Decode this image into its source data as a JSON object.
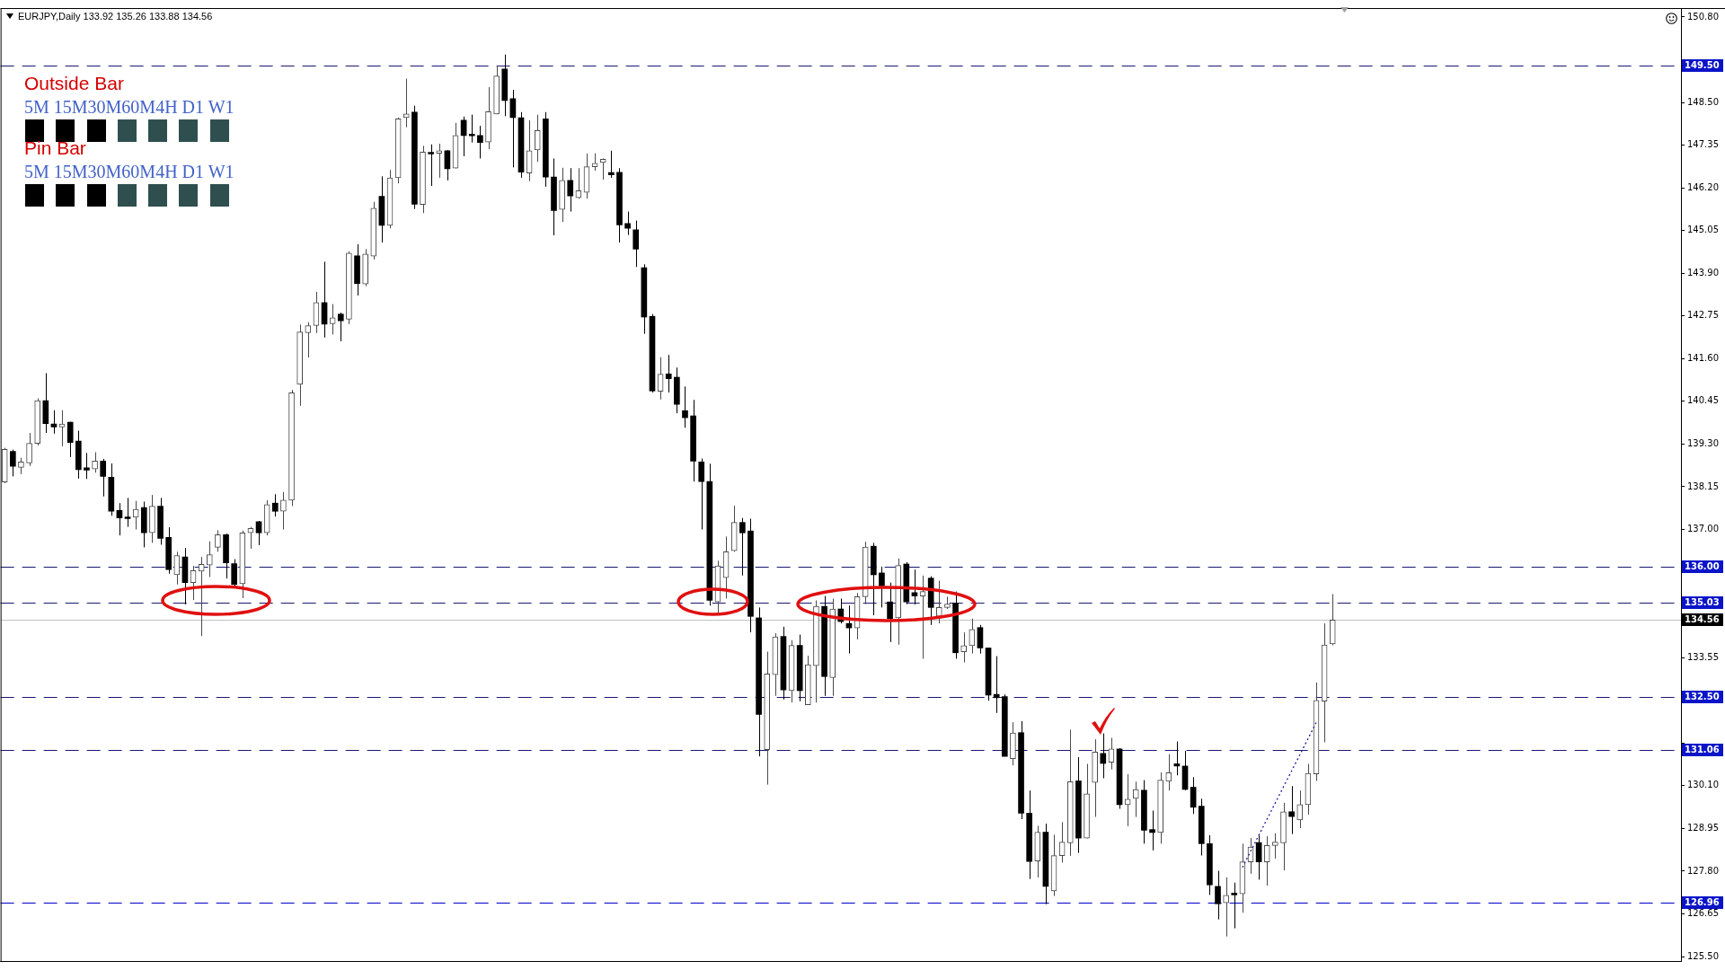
{
  "chart_data": {
    "type": "candlestick",
    "title": "EURJPY,Daily 133.92 135.26 133.88 134.56",
    "annotations": [
      "Outside Bar",
      "5M 15M30M60M4H D1 W1",
      "Pin Bar",
      "5M 15M30M60M4H D1 W1"
    ],
    "categories": [
      null,
      null,
      null,
      null,
      null,
      null,
      null,
      null,
      null,
      null,
      null,
      null,
      null,
      null,
      null,
      null,
      null,
      null,
      null,
      null,
      null,
      null,
      null,
      null,
      null,
      null,
      null,
      null,
      null,
      null,
      null,
      null,
      null,
      null,
      null,
      null,
      null,
      null,
      null,
      null,
      null,
      null,
      null,
      null,
      null,
      null,
      null,
      null,
      null,
      null,
      null,
      null,
      null,
      null,
      null,
      null,
      null,
      null,
      null,
      null,
      null,
      null,
      null,
      null,
      null,
      null,
      null,
      null,
      null,
      null,
      null,
      null,
      null,
      null,
      null,
      null,
      null,
      null,
      null,
      null,
      null,
      null,
      null,
      null,
      null,
      null,
      null,
      null,
      null,
      null,
      null,
      null,
      null,
      null,
      null,
      null,
      null,
      null,
      null,
      null,
      null,
      null,
      null,
      null,
      null,
      null,
      null,
      null,
      null,
      null,
      null,
      null,
      null,
      null,
      null,
      null,
      null,
      null,
      null,
      null,
      null,
      null,
      null,
      null,
      null,
      null,
      null,
      null,
      null,
      null,
      null,
      null,
      null,
      null,
      null,
      null,
      null,
      null,
      null,
      null,
      null,
      null,
      null,
      null,
      null,
      null,
      null,
      null,
      null,
      null,
      null,
      null,
      null,
      null,
      null,
      null,
      null,
      null,
      null,
      null,
      null,
      null,
      null,
      null,
      null,
      null,
      null,
      null,
      null,
      null,
      null,
      null,
      null,
      null,
      null,
      null,
      null,
      null,
      null,
      null,
      null,
      null,
      null,
      null,
      null,
      null,
      null,
      null,
      null,
      null,
      null,
      null,
      null,
      null,
      null,
      null,
      null,
      null,
      null,
      null,
      null,
      null,
      null,
      null,
      null
    ],
    "ohlc": [
      [
        138.28,
        139.2,
        138.25,
        139.16
      ],
      [
        139.1,
        139.15,
        138.43,
        138.7
      ],
      [
        138.67,
        138.93,
        138.49,
        138.82
      ],
      [
        138.79,
        139.6,
        138.71,
        139.32
      ],
      [
        139.32,
        140.53,
        139.26,
        140.47
      ],
      [
        140.47,
        141.21,
        139.6,
        139.85
      ],
      [
        139.84,
        140.21,
        139.58,
        139.76
      ],
      [
        139.76,
        140.21,
        139.24,
        139.84
      ],
      [
        139.89,
        139.9,
        138.95,
        139.34
      ],
      [
        139.38,
        139.66,
        138.37,
        138.61
      ],
      [
        138.66,
        139.06,
        138.36,
        138.6
      ],
      [
        138.63,
        139.08,
        138.53,
        138.84
      ],
      [
        138.84,
        138.9,
        137.89,
        138.43
      ],
      [
        138.41,
        138.78,
        137.37,
        137.49
      ],
      [
        137.51,
        137.71,
        136.84,
        137.31
      ],
      [
        137.34,
        137.85,
        137.07,
        137.29
      ],
      [
        137.33,
        137.77,
        137.0,
        137.54
      ],
      [
        137.59,
        137.75,
        136.52,
        136.91
      ],
      [
        136.91,
        137.93,
        136.64,
        137.63
      ],
      [
        137.63,
        137.85,
        136.59,
        136.76
      ],
      [
        136.79,
        137.06,
        135.81,
        135.92
      ],
      [
        135.78,
        136.4,
        135.52,
        136.3
      ],
      [
        136.26,
        136.5,
        134.98,
        135.57
      ],
      [
        135.57,
        136.02,
        135.1,
        135.89
      ],
      [
        135.88,
        136.26,
        134.13,
        136.06
      ],
      [
        136.04,
        136.68,
        135.72,
        136.32
      ],
      [
        136.52,
        136.98,
        136.4,
        136.86
      ],
      [
        136.86,
        136.89,
        135.68,
        136.1
      ],
      [
        136.08,
        136.2,
        135.48,
        135.52
      ],
      [
        135.54,
        136.97,
        135.15,
        136.91
      ],
      [
        136.91,
        137.07,
        136.48,
        137.03
      ],
      [
        137.21,
        137.23,
        136.58,
        136.91
      ],
      [
        136.91,
        137.79,
        136.84,
        137.67
      ],
      [
        137.71,
        137.95,
        137.35,
        137.49
      ],
      [
        137.49,
        138.01,
        137.0,
        137.79
      ],
      [
        137.79,
        140.76,
        137.63,
        140.68
      ],
      [
        140.91,
        142.52,
        140.33,
        142.32
      ],
      [
        142.3,
        142.58,
        141.63,
        142.49
      ],
      [
        142.49,
        143.4,
        142.29,
        143.11
      ],
      [
        143.11,
        144.21,
        142.17,
        142.53
      ],
      [
        142.54,
        143.07,
        142.25,
        142.7
      ],
      [
        142.8,
        142.84,
        142.07,
        142.62
      ],
      [
        142.66,
        144.49,
        142.53,
        144.44
      ],
      [
        144.37,
        144.68,
        143.3,
        143.62
      ],
      [
        143.61,
        144.55,
        143.55,
        144.42
      ],
      [
        144.36,
        145.82,
        144.27,
        145.65
      ],
      [
        145.97,
        146.51,
        144.73,
        145.19
      ],
      [
        145.19,
        146.68,
        145.11,
        146.47
      ],
      [
        146.47,
        148.09,
        146.32,
        148.06
      ],
      [
        148.09,
        149.14,
        147.83,
        148.19
      ],
      [
        148.24,
        148.41,
        145.63,
        145.76
      ],
      [
        145.75,
        147.33,
        145.52,
        147.16
      ],
      [
        147.14,
        147.37,
        146.25,
        147.11
      ],
      [
        147.13,
        147.39,
        146.47,
        147.2
      ],
      [
        147.2,
        147.22,
        146.4,
        146.71
      ],
      [
        146.73,
        147.95,
        146.72,
        147.61
      ],
      [
        148.02,
        148.12,
        147.05,
        147.61
      ],
      [
        147.61,
        148.17,
        147.42,
        147.6
      ],
      [
        147.61,
        147.87,
        146.99,
        147.42
      ],
      [
        147.43,
        148.91,
        147.24,
        148.25
      ],
      [
        148.19,
        149.49,
        148.18,
        149.21
      ],
      [
        149.4,
        149.79,
        148.13,
        148.55
      ],
      [
        148.6,
        148.84,
        146.75,
        148.09
      ],
      [
        148.09,
        148.24,
        146.47,
        146.62
      ],
      [
        146.6,
        148.02,
        146.38,
        147.2
      ],
      [
        147.22,
        148.17,
        146.9,
        147.74
      ],
      [
        148.06,
        148.24,
        146.23,
        146.49
      ],
      [
        146.49,
        146.99,
        144.92,
        145.59
      ],
      [
        145.62,
        146.74,
        145.28,
        146.4
      ],
      [
        146.4,
        146.73,
        145.56,
        145.98
      ],
      [
        145.93,
        146.73,
        145.91,
        146.12
      ],
      [
        146.08,
        147.12,
        145.91,
        146.77
      ],
      [
        146.77,
        147.13,
        146.66,
        146.86
      ],
      [
        146.88,
        146.99,
        146.42,
        146.97
      ],
      [
        146.61,
        147.2,
        146.47,
        146.55
      ],
      [
        146.62,
        146.73,
        144.73,
        145.2
      ],
      [
        145.24,
        145.56,
        144.93,
        145.11
      ],
      [
        145.07,
        145.32,
        144.07,
        144.55
      ],
      [
        144.05,
        144.14,
        142.27,
        142.72
      ],
      [
        142.74,
        142.8,
        140.69,
        140.73
      ],
      [
        140.72,
        141.64,
        140.5,
        141.18
      ],
      [
        141.19,
        141.7,
        140.69,
        141.06
      ],
      [
        141.1,
        141.36,
        140.13,
        140.37
      ],
      [
        140.2,
        140.85,
        139.74,
        140.01
      ],
      [
        140.06,
        140.49,
        138.29,
        138.84
      ],
      [
        138.82,
        138.91,
        137.0,
        138.29
      ],
      [
        138.29,
        138.77,
        134.95,
        135.09
      ],
      [
        135.05,
        136.16,
        134.76,
        136.02
      ],
      [
        135.7,
        136.81,
        135.14,
        136.4
      ],
      [
        136.43,
        137.64,
        136.4,
        137.19
      ],
      [
        137.19,
        137.31,
        135.76,
        136.91
      ],
      [
        136.96,
        137.29,
        134.23,
        134.66
      ],
      [
        134.62,
        134.9,
        130.89,
        132.02
      ],
      [
        131.07,
        133.71,
        130.13,
        133.11
      ],
      [
        133.09,
        134.21,
        132.52,
        134.11
      ],
      [
        134.12,
        134.38,
        132.42,
        132.68
      ],
      [
        132.66,
        134.02,
        132.34,
        133.88
      ],
      [
        133.88,
        134.17,
        132.37,
        132.66
      ],
      [
        132.28,
        133.6,
        132.28,
        133.36
      ],
      [
        133.33,
        135.09,
        132.34,
        134.93
      ],
      [
        134.93,
        135.21,
        132.52,
        133.04
      ],
      [
        133.01,
        135.14,
        132.52,
        134.86
      ],
      [
        134.86,
        135.14,
        134.47,
        134.52
      ],
      [
        134.47,
        134.95,
        133.66,
        134.35
      ],
      [
        134.35,
        135.29,
        134.04,
        135.19
      ],
      [
        135.19,
        136.67,
        134.99,
        136.53
      ],
      [
        136.55,
        136.64,
        134.69,
        135.78
      ],
      [
        135.83,
        136.0,
        134.9,
        135.48
      ],
      [
        135.05,
        135.57,
        133.97,
        134.6
      ],
      [
        134.62,
        136.22,
        133.9,
        136.03
      ],
      [
        136.07,
        136.12,
        134.99,
        135.05
      ],
      [
        135.3,
        135.92,
        134.98,
        135.21
      ],
      [
        135.21,
        135.76,
        133.52,
        135.33
      ],
      [
        135.69,
        135.74,
        134.43,
        134.9
      ],
      [
        134.66,
        135.62,
        134.47,
        134.9
      ],
      [
        134.9,
        135.19,
        134.86,
        134.99
      ],
      [
        135.02,
        135.33,
        133.52,
        133.68
      ],
      [
        133.71,
        134.23,
        133.42,
        133.87
      ],
      [
        133.87,
        134.6,
        133.66,
        134.31
      ],
      [
        134.36,
        134.43,
        133.66,
        133.81
      ],
      [
        133.81,
        133.82,
        132.39,
        132.54
      ],
      [
        132.56,
        133.59,
        132.06,
        132.47
      ],
      [
        132.5,
        132.56,
        130.89,
        130.89
      ],
      [
        130.83,
        131.81,
        130.65,
        131.52
      ],
      [
        131.53,
        131.84,
        129.2,
        129.36
      ],
      [
        129.36,
        129.97,
        127.59,
        128.06
      ],
      [
        128.07,
        129.02,
        127.63,
        128.85
      ],
      [
        128.85,
        129.08,
        126.91,
        127.39
      ],
      [
        127.27,
        128.78,
        127.13,
        128.22
      ],
      [
        128.22,
        129.12,
        128.03,
        128.58
      ],
      [
        128.56,
        131.61,
        128.21,
        130.21
      ],
      [
        130.23,
        130.87,
        128.29,
        128.69
      ],
      [
        128.69,
        130.69,
        128.68,
        129.88
      ],
      [
        130.19,
        131.35,
        129.26,
        131.01
      ],
      [
        130.97,
        131.51,
        130.3,
        130.7
      ],
      [
        130.73,
        131.39,
        130.54,
        131.09
      ],
      [
        131.09,
        131.11,
        129.48,
        129.59
      ],
      [
        129.59,
        130.41,
        129.01,
        129.74
      ],
      [
        129.76,
        130.21,
        129.26,
        130.0
      ],
      [
        129.98,
        130.25,
        128.54,
        128.9
      ],
      [
        128.92,
        129.43,
        128.36,
        128.84
      ],
      [
        128.84,
        130.46,
        128.54,
        130.25
      ],
      [
        130.22,
        130.95,
        129.97,
        130.45
      ],
      [
        130.69,
        131.29,
        130.38,
        130.63
      ],
      [
        130.63,
        131.04,
        129.98,
        130.0
      ],
      [
        130.06,
        130.33,
        129.34,
        129.52
      ],
      [
        129.55,
        129.75,
        128.22,
        128.54
      ],
      [
        128.54,
        128.77,
        127.16,
        127.43
      ],
      [
        127.39,
        127.81,
        126.5,
        126.92
      ],
      [
        126.95,
        127.63,
        126.04,
        127.15
      ],
      [
        127.21,
        127.49,
        126.26,
        127.16
      ],
      [
        127.19,
        128.54,
        126.68,
        128.05
      ],
      [
        128.05,
        128.69,
        127.73,
        128.45
      ],
      [
        128.57,
        128.76,
        127.57,
        128.05
      ],
      [
        128.05,
        128.74,
        127.41,
        128.49
      ],
      [
        128.49,
        128.82,
        128.14,
        128.58
      ],
      [
        128.56,
        129.64,
        127.82,
        129.4
      ],
      [
        129.4,
        130.09,
        128.8,
        129.27
      ],
      [
        129.18,
        129.97,
        128.96,
        129.59
      ],
      [
        129.59,
        130.69,
        129.32,
        130.43
      ],
      [
        130.42,
        132.88,
        130.23,
        132.4
      ],
      [
        132.38,
        134.47,
        131.27,
        133.89
      ],
      [
        133.92,
        135.26,
        133.88,
        134.56
      ],
      null,
      null,
      null,
      null,
      null,
      null,
      null,
      null,
      null,
      null,
      null,
      null,
      null,
      null,
      null,
      null,
      null,
      null,
      null,
      null,
      null,
      null,
      null,
      null,
      null,
      null,
      null,
      null,
      null,
      null,
      null,
      null,
      null,
      null,
      null,
      null,
      null,
      null,
      null,
      null,
      null,
      null
    ],
    "series": [
      {
        "type": "line",
        "color": "#1c1c9c",
        "line_style": "dotted",
        "values": [
          null,
          null,
          null,
          null,
          null,
          null,
          null,
          null,
          null,
          null,
          null,
          null,
          null,
          null,
          null,
          null,
          null,
          null,
          null,
          null,
          null,
          null,
          null,
          null,
          null,
          null,
          null,
          null,
          null,
          null,
          null,
          null,
          null,
          null,
          null,
          null,
          null,
          null,
          null,
          null,
          null,
          null,
          null,
          null,
          null,
          null,
          null,
          null,
          null,
          null,
          null,
          null,
          null,
          null,
          null,
          null,
          null,
          null,
          null,
          null,
          null,
          null,
          null,
          null,
          null,
          null,
          null,
          null,
          null,
          null,
          null,
          null,
          null,
          null,
          null,
          null,
          null,
          null,
          null,
          null,
          null,
          null,
          null,
          null,
          null,
          null,
          null,
          null,
          null,
          null,
          null,
          null,
          null,
          null,
          null,
          null,
          null,
          null,
          null,
          null,
          null,
          null,
          null,
          null,
          null,
          null,
          null,
          null,
          null,
          null,
          null,
          null,
          null,
          null,
          null,
          null,
          null,
          null,
          null,
          null,
          null,
          null,
          null,
          null,
          null,
          null,
          null,
          null,
          null,
          null,
          null,
          null,
          null,
          null,
          null,
          null,
          null,
          null,
          null,
          null,
          null,
          null,
          null,
          null,
          null,
          null,
          null,
          null,
          null,
          null,
          null,
          127.9,
          null,
          null,
          null,
          null,
          null,
          null,
          null,
          null,
          131.8,
          null,
          null,
          null,
          null,
          null,
          null,
          null,
          null,
          null,
          null,
          null,
          null,
          null,
          null,
          null,
          null,
          null,
          null,
          null,
          null,
          null,
          null,
          null,
          null,
          null,
          null,
          null,
          null,
          null,
          null,
          null,
          null,
          null,
          null,
          null,
          null,
          null,
          null,
          null,
          null,
          null,
          null,
          null,
          null
        ]
      }
    ],
    "ylim": [
      125.38,
      151.04
    ],
    "yticks": [
      {
        "value": 150.8,
        "label": "150.80"
      },
      {
        "value": 149.65,
        "label": null
      },
      {
        "value": 148.5,
        "label": "148.50"
      },
      {
        "value": 147.35,
        "label": "147.35"
      },
      {
        "value": 146.2,
        "label": "146.20"
      },
      {
        "value": 145.05,
        "label": "145.05"
      },
      {
        "value": 143.9,
        "label": "143.90"
      },
      {
        "value": 142.75,
        "label": "142.75"
      },
      {
        "value": 141.6,
        "label": "141.60"
      },
      {
        "value": 140.45,
        "label": "140.45"
      },
      {
        "value": 139.3,
        "label": "139.30"
      },
      {
        "value": 138.15,
        "label": "138.15"
      },
      {
        "value": 137.0,
        "label": "137.00"
      },
      {
        "value": 135.85,
        "label": null
      },
      {
        "value": 134.7,
        "label": null
      },
      {
        "value": 133.55,
        "label": "133.55"
      },
      {
        "value": 132.4,
        "label": null
      },
      {
        "value": 131.25,
        "label": null
      },
      {
        "value": 130.1,
        "label": "130.10"
      },
      {
        "value": 128.95,
        "label": "128.95"
      },
      {
        "value": 127.8,
        "label": "127.80"
      },
      {
        "value": 126.65,
        "label": "126.65"
      },
      {
        "value": 125.5,
        "label": "125.50"
      }
    ],
    "ref_lines": [
      {
        "axis": "y",
        "value": 149.5,
        "label": "149.50",
        "color": "#191970",
        "line_style": "dashed"
      },
      {
        "axis": "y",
        "value": 136.0,
        "label": "136.00",
        "color": "#191970",
        "line_style": "dashed"
      },
      {
        "axis": "y",
        "value": 135.03,
        "label": "135.03",
        "color": "#191970",
        "line_style": "dashed"
      },
      {
        "axis": "y",
        "value": 134.56,
        "label": "134.56",
        "color": "#c0c0c0",
        "line_style": "solid"
      },
      {
        "axis": "y",
        "value": 132.5,
        "label": "132.50",
        "color": "#191970",
        "line_style": "dashed"
      },
      {
        "axis": "y",
        "value": 131.06,
        "label": "131.06",
        "color": "#191970",
        "line_style": "dashed"
      },
      {
        "axis": "y",
        "value": 126.96,
        "label": "126.96",
        "color": "#0000cd",
        "line_style": "dashed"
      }
    ]
  }
}
